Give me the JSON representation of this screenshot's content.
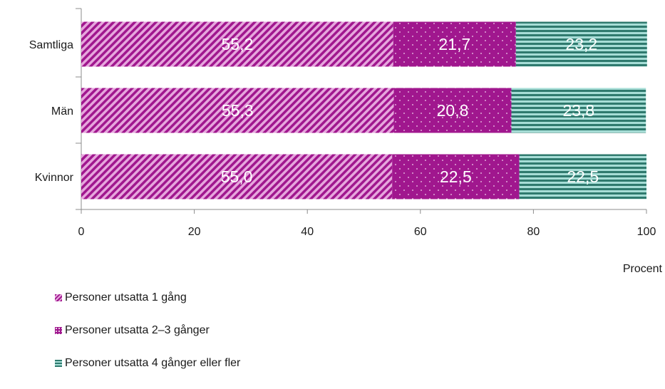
{
  "chart_data": {
    "type": "bar",
    "orientation": "horizontal",
    "stacked": true,
    "categories": [
      "Samtliga",
      "Män",
      "Kvinnor"
    ],
    "series": [
      {
        "name": "Personer utsatta 1 gång",
        "values": [
          55.2,
          55.3,
          55.0
        ],
        "labels": [
          "55,2",
          "55,3",
          "55,0"
        ],
        "color": "#a0178e",
        "pattern": "diagonal-stripes"
      },
      {
        "name": "Personer utsatta 2–3 gånger",
        "values": [
          21.7,
          20.8,
          22.5
        ],
        "labels": [
          "21,7",
          "20,8",
          "22,5"
        ],
        "color": "#a0178e",
        "pattern": "dots"
      },
      {
        "name": "Personer utsatta 4 gånger eller fler",
        "values": [
          23.2,
          23.8,
          22.5
        ],
        "labels": [
          "23,2",
          "23,8",
          "22,5"
        ],
        "color": "#2f7a6e",
        "pattern": "horizontal-stripes"
      }
    ],
    "xlabel": "Procent",
    "xlim": [
      0,
      100
    ],
    "xticks": [
      "0",
      "20",
      "40",
      "60",
      "80",
      "100"
    ],
    "legend_position": "bottom-left",
    "grid": false
  }
}
